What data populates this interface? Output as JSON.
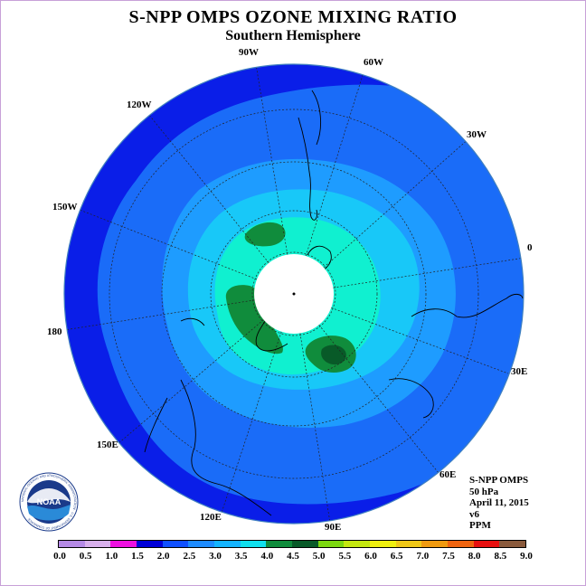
{
  "title": "S-NPP OMPS OZONE MIXING RATIO",
  "subtitle": "Southern Hemisphere",
  "longitude_labels": [
    "90W",
    "60W",
    "30W",
    "0",
    "30E",
    "60E",
    "90E",
    "120E",
    "150E",
    "180",
    "150W",
    "120W"
  ],
  "info": {
    "instrument": "S-NPP OMPS",
    "level": "50 hPa",
    "date": "April 11, 2015",
    "version": "v6",
    "units": "PPM"
  },
  "logo": {
    "text": "NOAA",
    "ring_text": "NATIONAL OCEANIC AND ATMOSPHERIC ADMINISTRATION · U.S. DEPARTMENT OF COMMERCE"
  },
  "colorbar": {
    "ticks": [
      "0.0",
      "0.5",
      "1.0",
      "1.5",
      "2.0",
      "2.5",
      "3.0",
      "3.5",
      "4.0",
      "4.5",
      "5.0",
      "5.5",
      "6.0",
      "6.5",
      "7.0",
      "7.5",
      "8.0",
      "8.5",
      "9.0"
    ],
    "colors": [
      "#b58ae6",
      "#d8b0ec",
      "#ee10e0",
      "#0000d8",
      "#1050ff",
      "#1e8cff",
      "#14b4ff",
      "#10e0ee",
      "#108c3c",
      "#085a28",
      "#7cd810",
      "#c4e810",
      "#f0f010",
      "#f0c818",
      "#f09a10",
      "#f06410",
      "#e81010",
      "#8a5a3c"
    ]
  },
  "map_colors": {
    "level_2_0": "#0a1ee8",
    "level_2_5": "#1a6cf8",
    "level_3_0": "#1e9cff",
    "level_3_5": "#18c8f8",
    "level_4_0": "#10f0d0",
    "level_4_5": "#108c3c",
    "level_5_0": "#085a28",
    "pole": "#ffffff"
  }
}
